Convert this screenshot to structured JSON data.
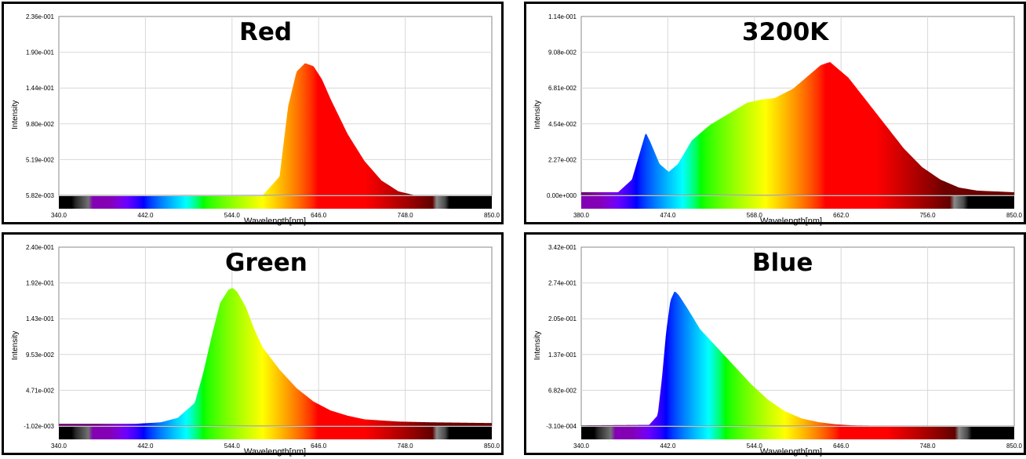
{
  "chart_data": [
    {
      "type": "area",
      "title": "Red",
      "xlabel": "Wavelength[nm]",
      "ylabel": "Intensity",
      "xlim": [
        340.0,
        850.0
      ],
      "ylim": [
        0.00582,
        0.236
      ],
      "x_ticks": [
        "340.0",
        "442.0",
        "544.0",
        "646.0",
        "748.0",
        "850.0"
      ],
      "y_ticks": [
        "2.36e-001",
        "1.90e-001",
        "1.44e-001",
        "9.80e-002",
        "5.19e-002",
        "5.82e-003"
      ],
      "grid": true,
      "colorbar": {
        "start": 340,
        "end": 850
      },
      "series": [
        {
          "x": [
            340,
            580,
            600,
            610,
            620,
            630,
            640,
            650,
            660,
            680,
            700,
            720,
            740,
            760,
            850
          ],
          "y": [
            0.0058,
            0.0058,
            0.03,
            0.12,
            0.165,
            0.176,
            0.172,
            0.155,
            0.13,
            0.085,
            0.05,
            0.025,
            0.011,
            0.0058,
            0.0058
          ]
        }
      ]
    },
    {
      "type": "area",
      "title": "3200K",
      "xlabel": "Wavelength[nm]",
      "ylabel": "Intensity",
      "xlim": [
        380.0,
        850.0
      ],
      "ylim": [
        0.0,
        0.114
      ],
      "x_ticks": [
        "380.0",
        "474.0",
        "568.0",
        "662.0",
        "756.0",
        "850.0"
      ],
      "y_ticks": [
        "1.14e-001",
        "9.08e-002",
        "6.81e-002",
        "4.54e-002",
        "2.27e-002",
        "0.00e+000"
      ],
      "grid": true,
      "colorbar": {
        "start": 380,
        "end": 850
      },
      "series": [
        {
          "x": [
            380,
            420,
            435,
            445,
            450,
            455,
            465,
            475,
            485,
            500,
            520,
            540,
            560,
            575,
            590,
            610,
            630,
            640,
            650,
            670,
            690,
            710,
            730,
            750,
            770,
            790,
            810,
            850
          ],
          "y": [
            0.002,
            0.002,
            0.01,
            0.03,
            0.04,
            0.034,
            0.02,
            0.015,
            0.02,
            0.035,
            0.045,
            0.052,
            0.059,
            0.061,
            0.062,
            0.068,
            0.078,
            0.083,
            0.085,
            0.075,
            0.06,
            0.045,
            0.03,
            0.018,
            0.01,
            0.005,
            0.003,
            0.002
          ]
        }
      ]
    },
    {
      "type": "area",
      "title": "Green",
      "xlabel": "Wavelength[nm]",
      "ylabel": "Intensity",
      "xlim": [
        340.0,
        850.0
      ],
      "ylim": [
        -0.00102,
        0.24
      ],
      "x_ticks": [
        "340.0",
        "442.0",
        "544.0",
        "646.0",
        "748.0",
        "850.0"
      ],
      "y_ticks": [
        "2.40e-001",
        "1.92e-001",
        "1.43e-001",
        "9.53e-002",
        "4.71e-002",
        "-1.02e-003"
      ],
      "grid": true,
      "colorbar": {
        "start": 340,
        "end": 850
      },
      "series": [
        {
          "x": [
            340,
            430,
            460,
            480,
            500,
            510,
            520,
            530,
            540,
            545,
            550,
            560,
            570,
            580,
            600,
            620,
            640,
            660,
            680,
            700,
            740,
            780,
            850
          ],
          "y": [
            0.002,
            0.002,
            0.004,
            0.01,
            0.03,
            0.07,
            0.12,
            0.165,
            0.183,
            0.185,
            0.18,
            0.16,
            0.13,
            0.105,
            0.075,
            0.05,
            0.032,
            0.02,
            0.013,
            0.008,
            0.005,
            0.004,
            0.003
          ]
        }
      ]
    },
    {
      "type": "area",
      "title": "Blue",
      "xlabel": "Wavelength[nm]",
      "ylabel": "Intensity",
      "xlim": [
        340.0,
        850.0
      ],
      "ylim": [
        -0.00031,
        0.342
      ],
      "x_ticks": [
        "340.0",
        "442.0",
        "544.0",
        "646.0",
        "748.0",
        "850.0"
      ],
      "y_ticks": [
        "3.42e-001",
        "2.74e-001",
        "2.05e-001",
        "1.37e-001",
        "6.82e-002",
        "-3.10e-004"
      ],
      "grid": true,
      "colorbar": {
        "start": 340,
        "end": 850
      },
      "series": [
        {
          "x": [
            340,
            420,
            430,
            435,
            440,
            445,
            450,
            455,
            465,
            480,
            500,
            520,
            540,
            560,
            580,
            600,
            620,
            640,
            660,
            700,
            850
          ],
          "y": [
            0.001,
            0.002,
            0.02,
            0.09,
            0.18,
            0.24,
            0.258,
            0.25,
            0.225,
            0.185,
            0.15,
            0.115,
            0.08,
            0.05,
            0.028,
            0.014,
            0.007,
            0.003,
            0.001,
            0.0,
            0.0
          ]
        }
      ]
    }
  ]
}
